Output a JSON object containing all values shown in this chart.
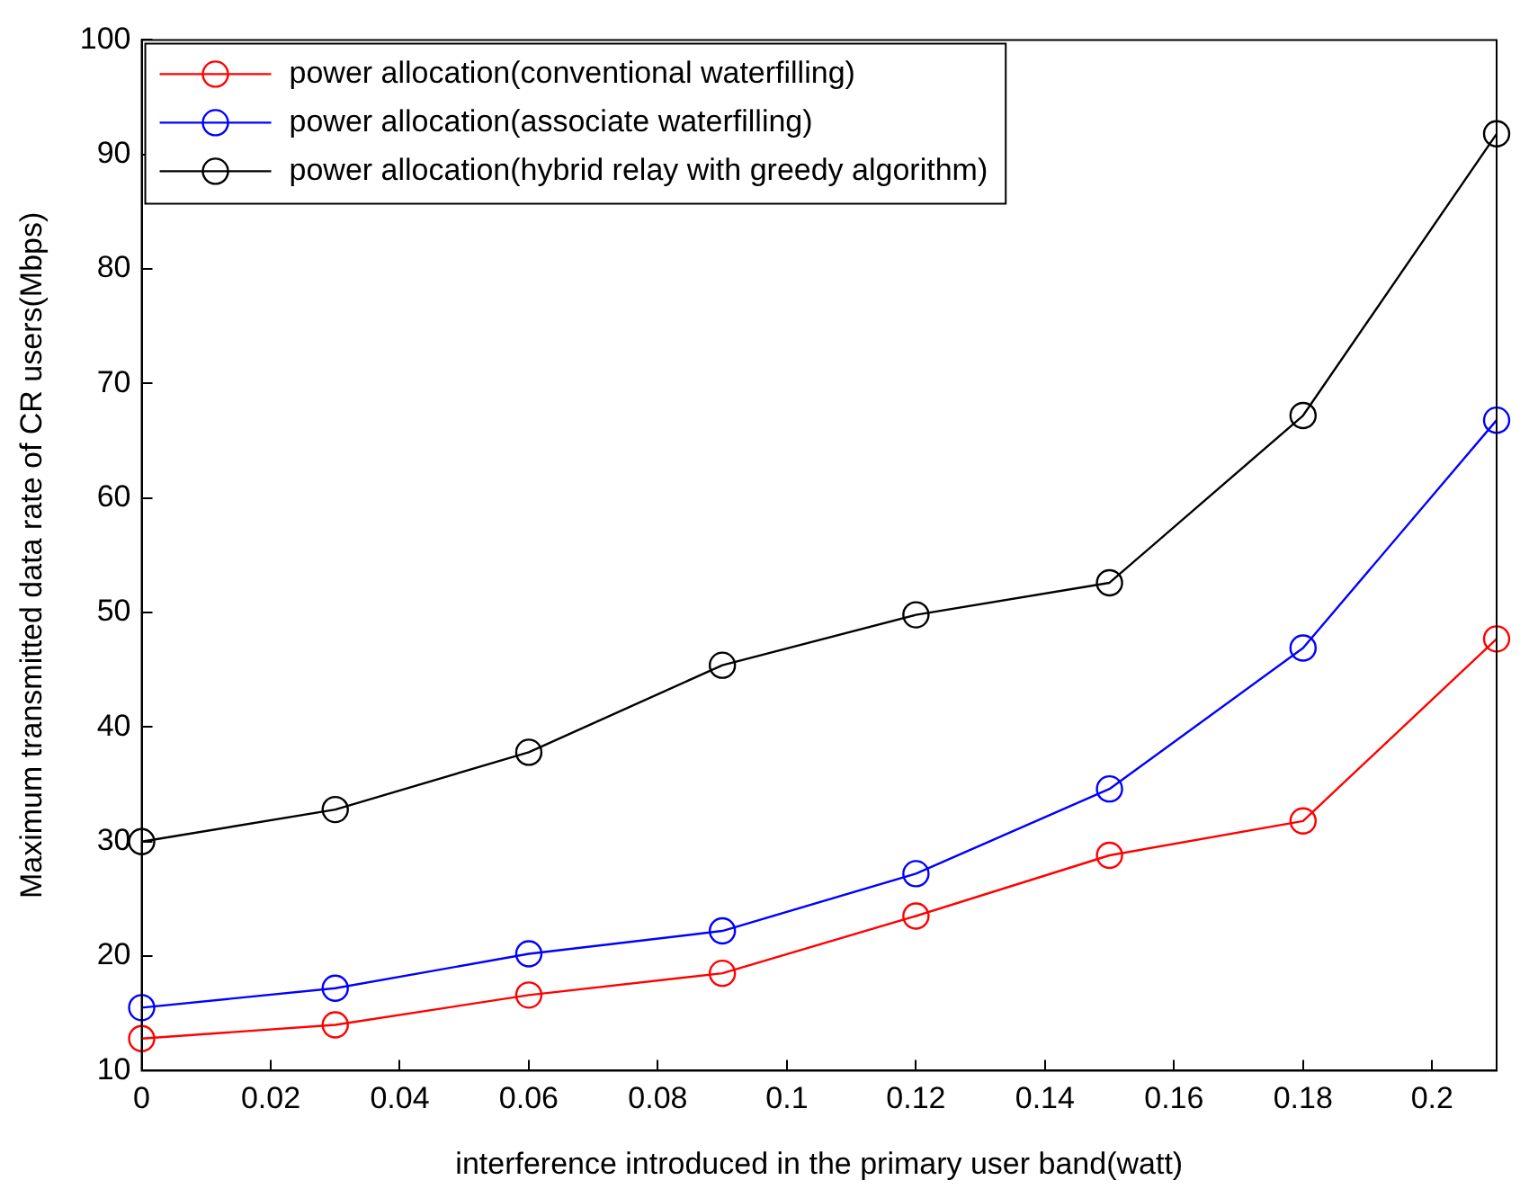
{
  "chart_data": {
    "type": "line",
    "xlabel": "interference introduced in the primary user band(watt)",
    "ylabel": "Maximum transmitted data rate of CR users(Mbps)",
    "x": [
      0,
      0.03,
      0.06,
      0.09,
      0.12,
      0.15,
      0.18,
      0.21
    ],
    "series": [
      {
        "name": "power allocation(conventional waterfilling)",
        "color": "#ff0000",
        "values": [
          12.8,
          14,
          16.6,
          18.5,
          23.5,
          28.8,
          31.8,
          47.7
        ]
      },
      {
        "name": "power allocation(associate waterfilling)",
        "color": "#0000ff",
        "values": [
          15.5,
          17.2,
          20.2,
          22.2,
          27.2,
          34.6,
          46.9,
          66.8
        ]
      },
      {
        "name": "power allocation(hybrid relay with greedy algorithm)",
        "color": "#000000",
        "values": [
          30,
          32.8,
          37.8,
          45.4,
          49.8,
          52.6,
          67.2,
          91.8
        ]
      }
    ],
    "xlim": [
      0,
      0.21
    ],
    "ylim": [
      10,
      100
    ],
    "xticks": [
      0,
      0.02,
      0.04,
      0.06,
      0.08,
      0.1,
      0.12,
      0.14,
      0.16,
      0.18,
      0.2
    ],
    "yticks": [
      10,
      20,
      30,
      40,
      50,
      60,
      70,
      80,
      90,
      100
    ],
    "grid": false,
    "legend": "top left",
    "marker": "circle",
    "line_style": "solid"
  }
}
